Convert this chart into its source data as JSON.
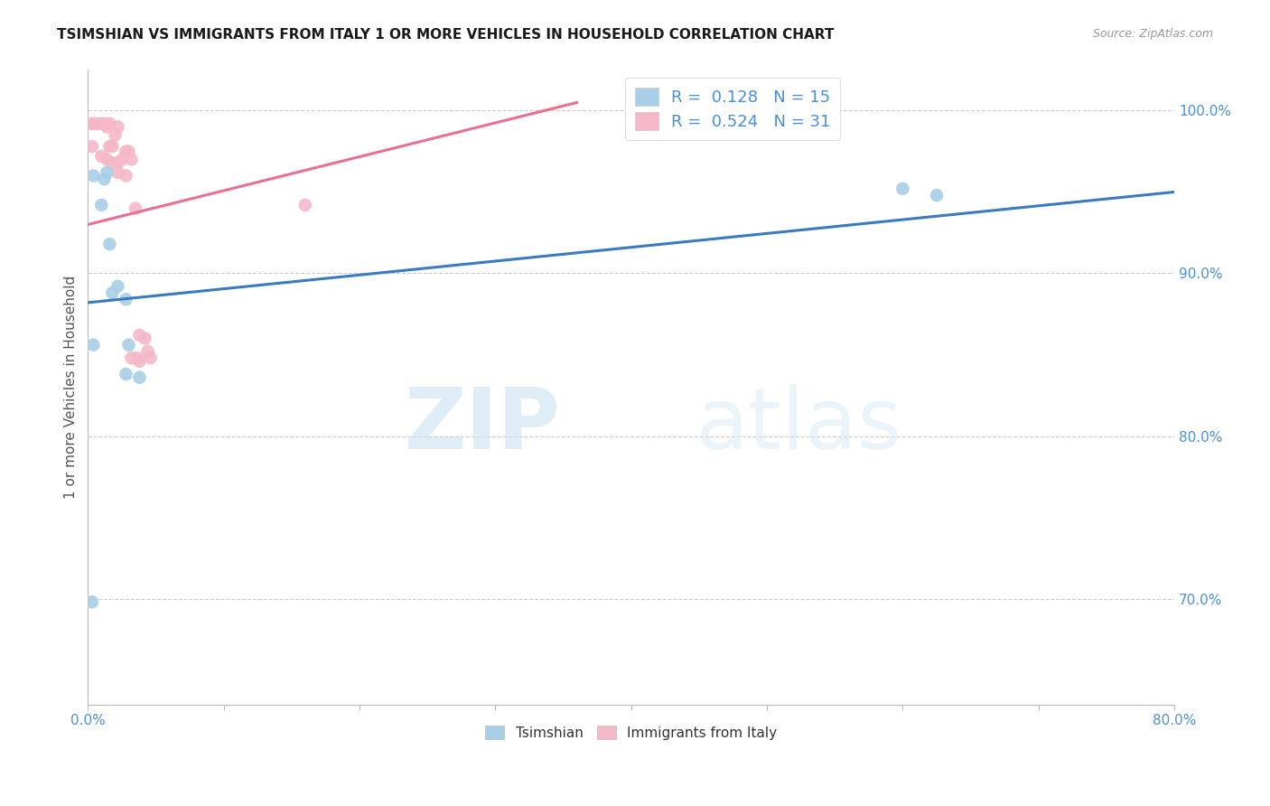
{
  "title": "TSIMSHIAN VS IMMIGRANTS FROM ITALY 1 OR MORE VEHICLES IN HOUSEHOLD CORRELATION CHART",
  "source": "Source: ZipAtlas.com",
  "ylabel": "1 or more Vehicles in Household",
  "legend_label1": "Tsimshian",
  "legend_label2": "Immigrants from Italy",
  "R1": "0.128",
  "N1": "15",
  "R2": "0.524",
  "N2": "31",
  "color_blue": "#a8cfe8",
  "color_pink": "#f4b8c8",
  "color_blue_line": "#3a7abf",
  "color_pink_line": "#e87090",
  "color_axis_label": "#4a90d9",
  "watermark_zip": "ZIP",
  "watermark_atlas": "atlas",
  "xlim": [
    0.0,
    0.8
  ],
  "ylim": [
    0.635,
    1.025
  ],
  "yticks": [
    0.7,
    0.8,
    0.9,
    1.0
  ],
  "ytick_labels": [
    "70.0%",
    "80.0%",
    "90.0%",
    "100.0%"
  ],
  "xticks": [
    0.0,
    0.1,
    0.2,
    0.3,
    0.4,
    0.5,
    0.6,
    0.7,
    0.8
  ],
  "blue_x": [
    0.004,
    0.012,
    0.014,
    0.01,
    0.016,
    0.018,
    0.004,
    0.022,
    0.028,
    0.03,
    0.028,
    0.038,
    0.6,
    0.625,
    0.003
  ],
  "blue_y": [
    0.96,
    0.958,
    0.962,
    0.942,
    0.918,
    0.888,
    0.856,
    0.892,
    0.884,
    0.856,
    0.838,
    0.836,
    0.952,
    0.948,
    0.698
  ],
  "pink_x": [
    0.003,
    0.005,
    0.008,
    0.01,
    0.012,
    0.014,
    0.016,
    0.003,
    0.016,
    0.018,
    0.02,
    0.022,
    0.022,
    0.025,
    0.028,
    0.03,
    0.032,
    0.035,
    0.038,
    0.038,
    0.042,
    0.044,
    0.046,
    0.032,
    0.036,
    0.01,
    0.014,
    0.018,
    0.022,
    0.028,
    0.16
  ],
  "pink_y": [
    0.992,
    0.992,
    0.992,
    0.992,
    0.992,
    0.99,
    0.992,
    0.978,
    0.978,
    0.978,
    0.985,
    0.99,
    0.968,
    0.97,
    0.975,
    0.975,
    0.97,
    0.94,
    0.862,
    0.846,
    0.86,
    0.852,
    0.848,
    0.848,
    0.848,
    0.972,
    0.97,
    0.968,
    0.962,
    0.96,
    0.942
  ],
  "blue_line_x": [
    0.0,
    0.8
  ],
  "blue_line_y": [
    0.882,
    0.95
  ],
  "pink_line_x": [
    0.0,
    0.36
  ],
  "pink_line_y": [
    0.93,
    1.005
  ]
}
